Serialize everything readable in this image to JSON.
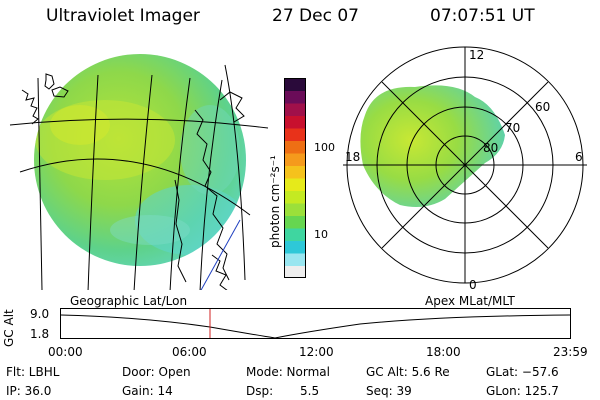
{
  "header": {
    "instrument": "Ultraviolet Imager",
    "date": "27 Dec 07",
    "time": "07:07:51 UT"
  },
  "colorbar": {
    "unit_label": "photon cm⁻²s⁻¹",
    "ticks": [
      "100",
      "10"
    ],
    "colors": [
      "#eeeeee",
      "#99e6f0",
      "#2ec8d8",
      "#3fd6a0",
      "#66d650",
      "#9be03a",
      "#c4ea22",
      "#e6ea1a",
      "#f5c21c",
      "#f59a1c",
      "#ee6f14",
      "#e8321a",
      "#c8102e",
      "#a0104a",
      "#6a0c58",
      "#2a0a3a"
    ]
  },
  "polar_plot": {
    "labels": {
      "top": "12",
      "bottom": "0",
      "left": "18",
      "right": "6",
      "lat60": "60",
      "lat70": "70",
      "lat80": "80"
    }
  },
  "altitude_plot": {
    "left_title": "Geographic Lat/Lon",
    "right_title": "Apex MLat/MLT",
    "y_axis_label": "GC Alt",
    "y_ticks": [
      "9.0",
      "1.8"
    ],
    "x_ticks": [
      "00:00",
      "06:00",
      "12:00",
      "18:00",
      "23:59"
    ],
    "current_time_marker_color": "#d02020"
  },
  "status": {
    "flt": "Flt: LBHL",
    "ip": "IP: 36.0",
    "door": "Door: Open",
    "gain": "Gain: 14",
    "mode": "Mode: Normal",
    "dsp_label": "Dsp:",
    "dsp_value": "5.5",
    "gc_alt": "GC Alt: 5.6 Re",
    "seq": "Seq: 39",
    "glat": "GLat: −57.6",
    "glon": "GLon: 125.7"
  }
}
